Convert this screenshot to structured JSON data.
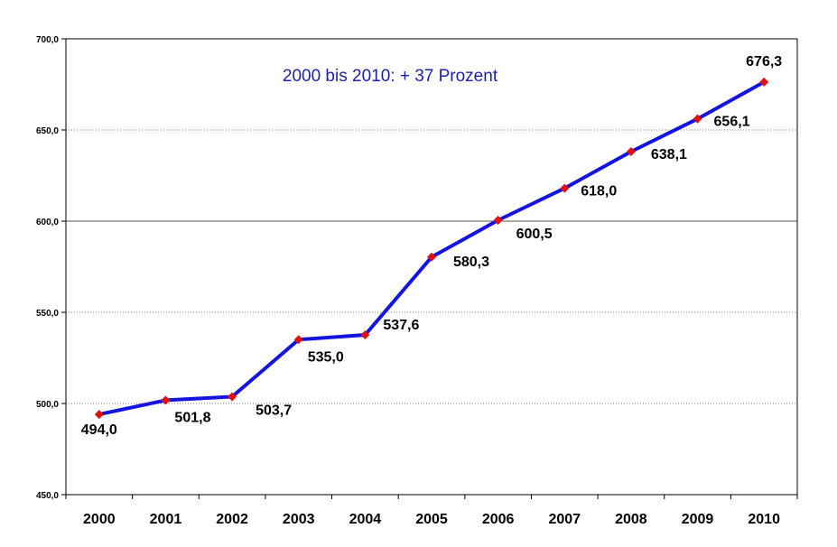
{
  "chart_data": {
    "type": "line",
    "title": "",
    "xlabel": "",
    "ylabel": "",
    "annotation": "2000 bis 2010: + 37 Prozent",
    "categories": [
      "2000",
      "2001",
      "2002",
      "2003",
      "2004",
      "2005",
      "2006",
      "2007",
      "2008",
      "2009",
      "2010"
    ],
    "series": [
      {
        "values": [
          494.0,
          501.8,
          503.7,
          535.0,
          537.6,
          580.3,
          600.5,
          618.0,
          638.1,
          656.1,
          676.3
        ],
        "labels": [
          "494,0",
          "501,8",
          "503,7",
          "535,0",
          "537,6",
          "580,3",
          "600,5",
          "618,0",
          "638,1",
          "656,1",
          "676,3"
        ],
        "line_color": "#1414e0",
        "marker_color": "#e01010"
      }
    ],
    "ylim": [
      450,
      700
    ],
    "yticks": [
      450,
      500,
      550,
      600,
      650,
      700
    ],
    "ytick_labels": [
      "450,0",
      "500,0",
      "550,0",
      "600,0",
      "650,0",
      "700,0"
    ],
    "grid": "horizontal",
    "legend": "none"
  }
}
